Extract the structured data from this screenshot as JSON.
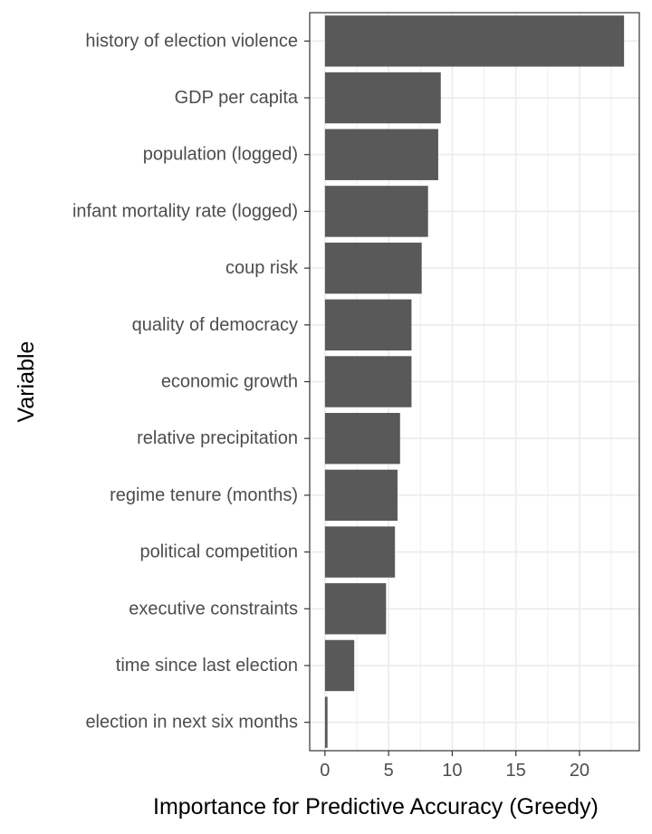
{
  "chart_data": {
    "type": "bar",
    "orientation": "horizontal",
    "categories": [
      "history of election violence",
      "GDP per capita",
      "population (logged)",
      "infant mortality rate (logged)",
      "coup risk",
      "quality of democracy",
      "economic growth",
      "relative precipitation",
      "regime tenure (months)",
      "political competition",
      "executive constraints",
      "time since last election",
      "election in next six months"
    ],
    "values": [
      23.5,
      9.1,
      8.9,
      8.1,
      7.6,
      6.8,
      6.8,
      5.9,
      5.7,
      5.5,
      4.8,
      2.3,
      0.2
    ],
    "xlabel": "Importance for Predictive Accuracy (Greedy)",
    "ylabel": "Variable",
    "xlim": [
      -1.2,
      24.7
    ],
    "xticks": [
      0,
      5,
      10,
      15,
      20
    ],
    "grid": true,
    "bar_color": "#595959",
    "grid_color": "#ebebeb",
    "panel_border_color": "#333333",
    "text_color": "#4d4d4d"
  }
}
